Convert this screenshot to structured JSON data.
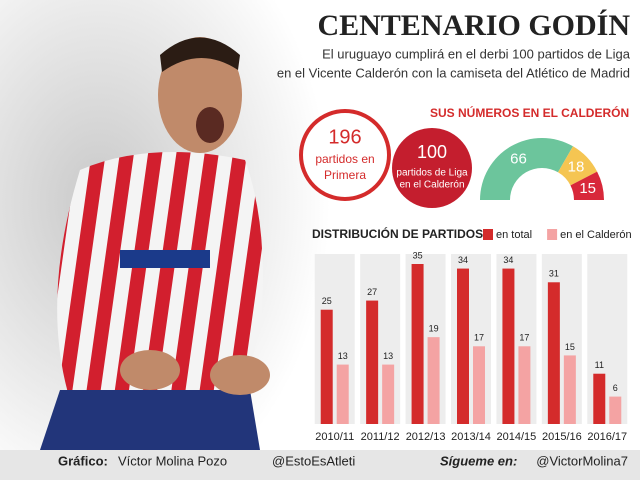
{
  "header": {
    "title": "CENTENARIO GODÍN",
    "subtitle": [
      "El uruguayo cumplirá en el derbi 100 partidos de Liga",
      "en el Vicente Calderón con la camiseta del Atlético de Madrid"
    ]
  },
  "highlights": [
    {
      "value": 196,
      "label": [
        "partidos en",
        "Primera"
      ]
    },
    {
      "value": 100,
      "label": [
        "partidos de Liga",
        "en el Calderón"
      ]
    }
  ],
  "chart_data": [
    {
      "type": "pie",
      "title": "SUS NÚMEROS EN EL CALDERÓN",
      "semicircle": true,
      "values": [
        66,
        18,
        15
      ],
      "colors": [
        "#6cc59c",
        "#f5c552",
        "#d8283a"
      ]
    },
    {
      "type": "bar",
      "title": "DISTRIBUCIÓN DE PARTIDOS",
      "categories": [
        "2010/11",
        "2011/12",
        "2012/13",
        "2013/14",
        "2014/15",
        "2015/16",
        "2016/17"
      ],
      "series": [
        {
          "name": "en total",
          "color": "#d42b2b",
          "values": [
            25,
            27,
            35,
            34,
            34,
            31,
            11
          ]
        },
        {
          "name": "en el Calderón",
          "color": "#f4a3a3",
          "values": [
            13,
            13,
            19,
            17,
            17,
            15,
            6
          ]
        }
      ],
      "ylim": [
        0,
        35
      ]
    }
  ],
  "footer": {
    "credit_label": "Gráfico:",
    "credit": "Víctor Molina Pozo",
    "handle": "@EstoEsAtleti",
    "follow_label": "Sígueme en:",
    "follow": "@VictorMolina7"
  }
}
